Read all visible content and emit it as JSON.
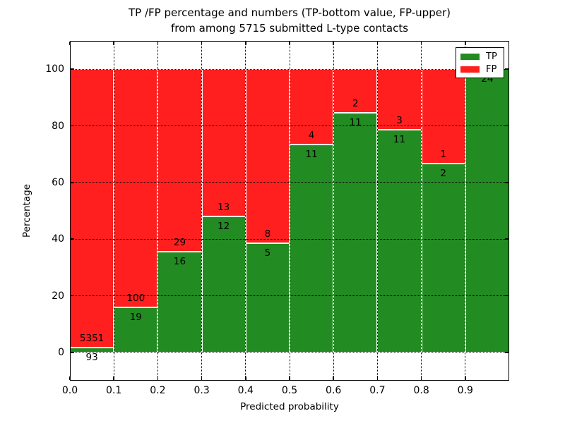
{
  "title": {
    "line1": "TP /FP percentage and numbers (TP-bottom value, FP-upper)",
    "line2": "from among 5715 submitted L-type contacts"
  },
  "chart_data": {
    "type": "bar",
    "stacked": true,
    "title": "TP /FP percentage and numbers (TP-bottom value, FP-upper) from among 5715 submitted L-type contacts",
    "xlabel": "Predicted probability",
    "ylabel": "Percentage",
    "xlim": [
      0.0,
      1.0
    ],
    "ylim": [
      -10,
      110
    ],
    "grid": true,
    "grid_style": "dotted",
    "bar_edge_color": "#ffffff",
    "xticks": {
      "values": [
        0.0,
        0.1,
        0.2,
        0.3,
        0.4,
        0.5,
        0.6,
        0.7,
        0.8,
        0.9
      ],
      "labels": [
        "0.0",
        "0.1",
        "0.2",
        "0.3",
        "0.4",
        "0.5",
        "0.6",
        "0.7",
        "0.8",
        "0.9"
      ]
    },
    "yticks": {
      "values": [
        0,
        20,
        40,
        60,
        80,
        100
      ],
      "labels": [
        "0",
        "20",
        "40",
        "60",
        "80",
        "100"
      ]
    },
    "legend": {
      "position": "upper right",
      "entries": [
        {
          "label": "TP",
          "color": "#228b22"
        },
        {
          "label": "FP",
          "color": "#ff1f1f"
        }
      ]
    },
    "bins": [
      {
        "x_range": [
          0.0,
          0.1
        ],
        "tp": 93,
        "fp": 5351,
        "tp_pct": 1.71
      },
      {
        "x_range": [
          0.1,
          0.2
        ],
        "tp": 19,
        "fp": 100,
        "tp_pct": 15.97
      },
      {
        "x_range": [
          0.2,
          0.3
        ],
        "tp": 16,
        "fp": 29,
        "tp_pct": 35.56
      },
      {
        "x_range": [
          0.3,
          0.4
        ],
        "tp": 12,
        "fp": 13,
        "tp_pct": 48.0
      },
      {
        "x_range": [
          0.4,
          0.5
        ],
        "tp": 5,
        "fp": 8,
        "tp_pct": 38.46
      },
      {
        "x_range": [
          0.5,
          0.6
        ],
        "tp": 11,
        "fp": 4,
        "tp_pct": 73.33
      },
      {
        "x_range": [
          0.6,
          0.7
        ],
        "tp": 11,
        "fp": 2,
        "tp_pct": 84.62
      },
      {
        "x_range": [
          0.7,
          0.8
        ],
        "tp": 11,
        "fp": 3,
        "tp_pct": 78.57
      },
      {
        "x_range": [
          0.8,
          0.9
        ],
        "tp": 2,
        "fp": 1,
        "tp_pct": 66.67
      },
      {
        "x_range": [
          0.9,
          1.0
        ],
        "tp": 24,
        "fp": 0,
        "tp_pct": 100.0
      }
    ]
  }
}
